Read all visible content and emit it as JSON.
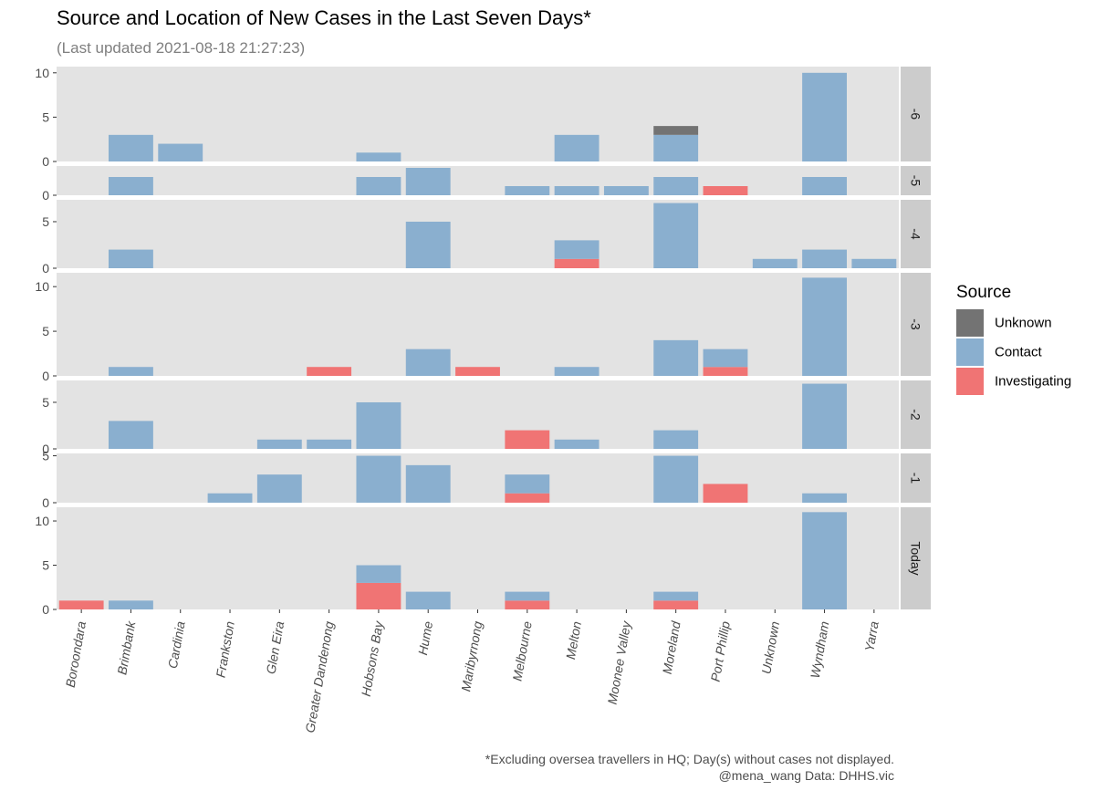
{
  "chart_data": {
    "type": "bar",
    "stacked": true,
    "faceted": true,
    "title": "Source and Location of New Cases in the Last Seven Days*",
    "subtitle": "(Last updated 2021-08-18 21:27:23)",
    "categories": [
      "Boroondara",
      "Brimbank",
      "Cardinia",
      "Frankston",
      "Glen Eira",
      "Greater Dandenong",
      "Hobsons Bay",
      "Hume",
      "Maribyrnong",
      "Melbourne",
      "Melton",
      "Moonee Valley",
      "Moreland",
      "Port Phillip",
      "Unknown",
      "Wyndham",
      "Yarra"
    ],
    "legend": {
      "title": "Source",
      "position": "right",
      "items": [
        {
          "name": "Unknown",
          "color": "#737373"
        },
        {
          "name": "Contact",
          "color": "#8AAFCF"
        },
        {
          "name": "Investigating",
          "color": "#F07474"
        }
      ]
    },
    "stack_order": [
      "Investigating",
      "Contact",
      "Unknown"
    ],
    "grid": false,
    "panels": [
      {
        "label": "-6",
        "ylim": [
          0,
          10.7
        ],
        "yticks": [
          "0",
          "5",
          "10"
        ],
        "series": [
          {
            "name": "Unknown",
            "values": [
              0,
              0,
              0,
              0,
              0,
              0,
              0,
              0,
              0,
              0,
              0,
              0,
              1,
              0,
              0,
              0,
              0
            ]
          },
          {
            "name": "Contact",
            "values": [
              0,
              3,
              2,
              0,
              0,
              0,
              1,
              0,
              0,
              0,
              3,
              0,
              3,
              0,
              0,
              10,
              0
            ]
          },
          {
            "name": "Investigating",
            "values": [
              0,
              0,
              0,
              0,
              0,
              0,
              0,
              0,
              0,
              0,
              0,
              0,
              0,
              0,
              0,
              0,
              0
            ]
          }
        ]
      },
      {
        "label": "-5",
        "ylim": [
          0,
          3.2
        ],
        "yticks": [
          "0"
        ],
        "series": [
          {
            "name": "Unknown",
            "values": [
              0,
              0,
              0,
              0,
              0,
              0,
              0,
              0,
              0,
              0,
              0,
              0,
              0,
              0,
              0,
              0,
              0
            ]
          },
          {
            "name": "Contact",
            "values": [
              0,
              2,
              0,
              0,
              0,
              0,
              2,
              3,
              0,
              1,
              1,
              1,
              2,
              0,
              0,
              2,
              0
            ]
          },
          {
            "name": "Investigating",
            "values": [
              0,
              0,
              0,
              0,
              0,
              0,
              0,
              0,
              0,
              0,
              0,
              0,
              0,
              1,
              0,
              0,
              0
            ]
          }
        ]
      },
      {
        "label": "-4",
        "ylim": [
          0,
          7.35
        ],
        "yticks": [
          "0",
          "5"
        ],
        "series": [
          {
            "name": "Unknown",
            "values": [
              0,
              0,
              0,
              0,
              0,
              0,
              0,
              0,
              0,
              0,
              0,
              0,
              0,
              0,
              0,
              0,
              0
            ]
          },
          {
            "name": "Contact",
            "values": [
              0,
              2,
              0,
              0,
              0,
              0,
              0,
              5,
              0,
              0,
              2,
              0,
              7,
              0,
              1,
              2,
              1
            ]
          },
          {
            "name": "Investigating",
            "values": [
              0,
              0,
              0,
              0,
              0,
              0,
              0,
              0,
              0,
              0,
              1,
              0,
              0,
              0,
              0,
              0,
              0
            ]
          }
        ]
      },
      {
        "label": "-3",
        "ylim": [
          0,
          11.55
        ],
        "yticks": [
          "0",
          "5",
          "10"
        ],
        "series": [
          {
            "name": "Unknown",
            "values": [
              0,
              0,
              0,
              0,
              0,
              0,
              0,
              0,
              0,
              0,
              0,
              0,
              0,
              0,
              0,
              0,
              0
            ]
          },
          {
            "name": "Contact",
            "values": [
              0,
              1,
              0,
              0,
              0,
              0,
              0,
              3,
              0,
              0,
              1,
              0,
              4,
              2,
              0,
              11,
              0
            ]
          },
          {
            "name": "Investigating",
            "values": [
              0,
              0,
              0,
              0,
              0,
              1,
              0,
              0,
              1,
              0,
              0,
              0,
              0,
              1,
              0,
              0,
              0
            ]
          }
        ]
      },
      {
        "label": "-2",
        "ylim": [
          0,
          7.35
        ],
        "yticks": [
          "0",
          "5"
        ],
        "series": [
          {
            "name": "Unknown",
            "values": [
              0,
              0,
              0,
              0,
              0,
              0,
              0,
              0,
              0,
              0,
              0,
              0,
              0,
              0,
              0,
              0,
              0
            ]
          },
          {
            "name": "Contact",
            "values": [
              0,
              3,
              0,
              0,
              1,
              1,
              5,
              0,
              0,
              0,
              1,
              0,
              2,
              0,
              0,
              7,
              0
            ]
          },
          {
            "name": "Investigating",
            "values": [
              0,
              0,
              0,
              0,
              0,
              0,
              0,
              0,
              0,
              2,
              0,
              0,
              0,
              0,
              0,
              0,
              0
            ]
          }
        ]
      },
      {
        "label": "-1",
        "ylim": [
          0,
          5.25
        ],
        "yticks": [
          "0",
          "5"
        ],
        "series": [
          {
            "name": "Unknown",
            "values": [
              0,
              0,
              0,
              0,
              0,
              0,
              0,
              0,
              0,
              0,
              0,
              0,
              0,
              0,
              0,
              0,
              0
            ]
          },
          {
            "name": "Contact",
            "values": [
              0,
              0,
              0,
              1,
              3,
              0,
              5,
              4,
              0,
              2,
              0,
              0,
              5,
              0,
              0,
              1,
              0
            ]
          },
          {
            "name": "Investigating",
            "values": [
              0,
              0,
              0,
              0,
              0,
              0,
              0,
              0,
              0,
              1,
              0,
              0,
              0,
              2,
              0,
              0,
              0
            ]
          }
        ]
      },
      {
        "label": "Today",
        "ylim": [
          0,
          11.55
        ],
        "yticks": [
          "0",
          "5",
          "10"
        ],
        "series": [
          {
            "name": "Unknown",
            "values": [
              0,
              0,
              0,
              0,
              0,
              0,
              0,
              0,
              0,
              0,
              0,
              0,
              0,
              0,
              0,
              0,
              0
            ]
          },
          {
            "name": "Contact",
            "values": [
              0,
              1,
              0,
              0,
              0,
              0,
              2,
              2,
              0,
              1,
              0,
              0,
              1,
              0,
              0,
              11,
              0
            ]
          },
          {
            "name": "Investigating",
            "values": [
              1,
              0,
              0,
              0,
              0,
              0,
              3,
              0,
              0,
              1,
              0,
              0,
              1,
              0,
              0,
              0,
              0
            ]
          }
        ]
      }
    ],
    "caption_line1": "*Excluding oversea travellers in HQ; Day(s) without cases not displayed.",
    "caption_line2": "@mena_wang    Data: DHHS.vic"
  }
}
